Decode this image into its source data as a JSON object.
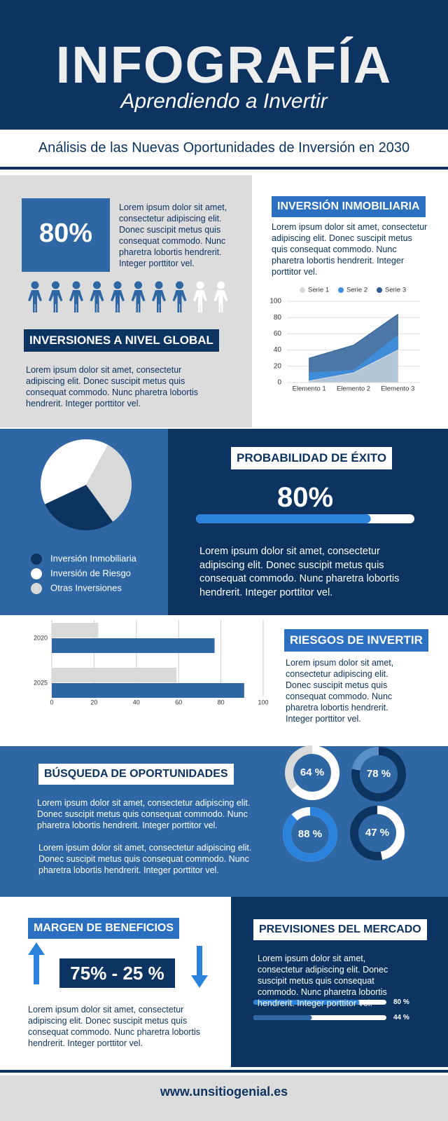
{
  "header": {
    "title": "INFOGRAFÍA",
    "subtitle": "Aprendiendo a Invertir"
  },
  "banner": "Análisis de las Nuevas Oportunidades de Inversión en 2030",
  "global": {
    "text": "Lorem ipsum dolor sit amet, consectetur adipiscing elit. Donec suscipit metus quis consequat commodo. Nunc pharetra lobortis hendrerit. Integer porttitor vel.",
    "title": "INVERSIONES A NIVEL GLOBAL",
    "text2": "Lorem ipsum dolor sit amet, consectetur adipiscing elit. Donec suscipit metus quis consequat commodo. Nunc pharetra lobortis hendrerit. Integer porttitor vel."
  },
  "inmobiliaria": {
    "title": "INVERSIÓN INMOBILIARIA",
    "text": "Lorem ipsum dolor sit amet, consectetur adipiscing elit. Donec suscipit metus quis consequat commodo. Nunc pharetra lobortis hendrerit. Integer porttitor vel."
  },
  "exito": {
    "title": "PROBABILIDAD DE ÉXITO",
    "text": "Lorem ipsum dolor sit amet, consectetur adipiscing elit. Donec suscipit metus quis consequat commodo. Nunc pharetra lobortis hendrerit. Integer porttitor vel."
  },
  "riesgos": {
    "title": "RIESGOS DE INVERTIR",
    "text": "Lorem ipsum dolor sit amet, consectetur adipiscing elit. Donec suscipit metus quis consequat commodo. Nunc pharetra lobortis hendrerit. Integer porttitor vel."
  },
  "busqueda": {
    "title": "BÚSQUEDA DE OPORTUNIDADES",
    "text1": "Lorem ipsum dolor sit amet, consectetur adipiscing elit. Donec suscipit metus quis consequat commodo. Nunc pharetra lobortis hendrerit. Integer porttitor vel.",
    "text2": "Lorem ipsum dolor sit amet, consectetur adipiscing elit. Donec suscipit metus quis consequat commodo. Nunc pharetra lobortis hendrerit. Integer porttitor vel."
  },
  "margen": {
    "title": "MARGEN DE BENEFICIOS",
    "label": "75% - 25 %",
    "text": "Lorem ipsum dolor sit amet, consectetur adipiscing elit. Donec suscipit metus quis consequat commodo. Nunc pharetra lobortis hendrerit. Integer porttitor vel."
  },
  "previsiones": {
    "title": "PREVISIONES DEL MERCADO",
    "text": "Lorem ipsum dolor sit amet, consectetur adipiscing elit. Donec suscipit metus quis consequat commodo. Nunc pharetra lobortis hendrerit. Integer porttitor vel."
  },
  "footer": "www.unsitiogenial.es",
  "chart_data": [
    {
      "type": "pictogram",
      "values": [
        80
      ],
      "value_labels": [
        "80%"
      ],
      "xlim": [
        0,
        100
      ],
      "color": "#2e67a3",
      "empty_color": "#ffffff"
    },
    {
      "type": "area",
      "categories": [
        "Elemento 1",
        "Elemento 2",
        "Elemento 3"
      ],
      "series": [
        {
          "name": "Serie 1",
          "color": "#d9d9d9",
          "values": [
            2,
            12,
            40
          ]
        },
        {
          "name": "Serie 2",
          "color": "#3d8fe0",
          "values": [
            12,
            15,
            58
          ]
        },
        {
          "name": "Serie 3",
          "color": "#2d5f96",
          "values": [
            30,
            46,
            84
          ]
        }
      ],
      "ylim": [
        0,
        100
      ],
      "yticks": [
        0,
        20,
        40,
        60,
        80,
        100
      ],
      "grid": true,
      "legend": "top"
    },
    {
      "type": "pie",
      "categories": [
        "Inversión Inmobiliaria",
        "Inversión de Riesgo",
        "Otras Inversiones"
      ],
      "values": [
        28,
        40,
        32
      ],
      "colors": [
        "#0d3461",
        "#ffffff",
        "#d9d9d9"
      ]
    },
    {
      "type": "progress",
      "values": [
        80
      ],
      "value_labels": [
        "80%"
      ],
      "xlim": [
        0,
        100
      ],
      "colors": [
        "#2b82dc"
      ]
    },
    {
      "type": "hbar",
      "categories": [
        "2020",
        "2025"
      ],
      "series": [
        {
          "color": "#d9d9d9",
          "values": [
            22,
            59
          ]
        },
        {
          "color": "#2e67a3",
          "values": [
            77,
            91
          ]
        }
      ],
      "xlim": [
        0,
        100
      ],
      "xticks": [
        0,
        20,
        40,
        60,
        80,
        100
      ],
      "grid": true
    },
    {
      "type": "donut",
      "values": [
        64,
        78,
        88,
        47
      ],
      "value_labels": [
        "64 %",
        "78 %",
        "88 %",
        "47 %"
      ],
      "xlim": [
        0,
        100
      ],
      "colors": [
        "#ffffff",
        "#0d3461",
        "#2b82dc",
        "#ffffff"
      ],
      "track_colors": [
        "#d9d9d9",
        "#5b8fc7",
        "#ffffff",
        "#0d3461"
      ]
    },
    {
      "type": "progress",
      "values": [
        80,
        44
      ],
      "value_labels": [
        "80 %",
        "44 %"
      ],
      "xlim": [
        0,
        100
      ],
      "colors": [
        "#2b82dc",
        "#2e67a3"
      ]
    }
  ]
}
